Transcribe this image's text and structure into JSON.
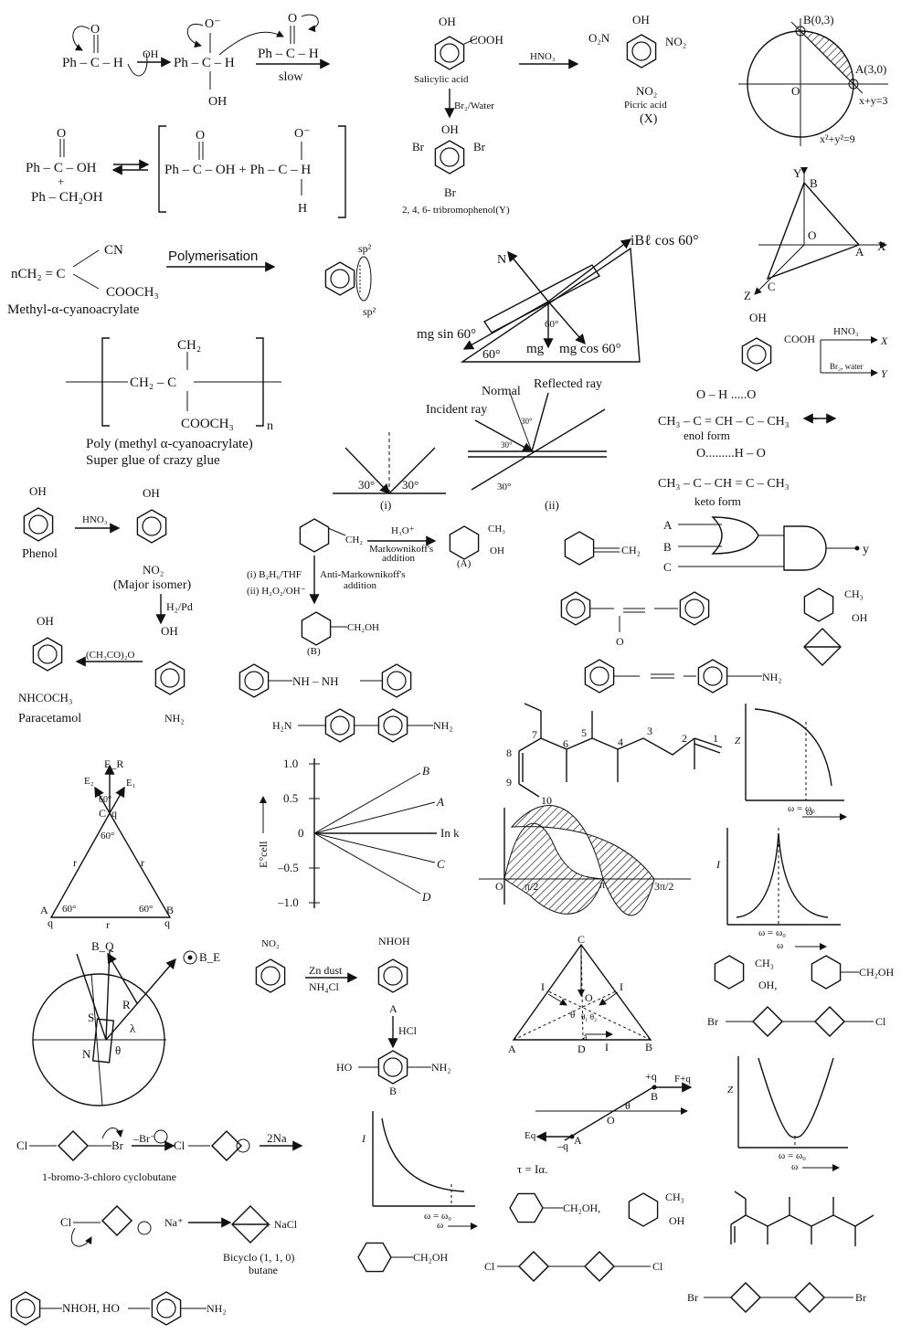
{
  "cannizzaro": {
    "r1": "Ph – C – H",
    "oh": "OH",
    "r2": "Ph – C – H",
    "r2oh": "OH",
    "o": "O",
    "ominus": "O⁻",
    "r3": "Ph – C – H",
    "slow": "slow",
    "p1": "Ph – C – OH",
    "plus": "+",
    "p2": "Ph – CH₂OH",
    "b1": "Ph – C – OH + Ph – C – H",
    "h": "H"
  },
  "salicylic": {
    "oh": "OH",
    "cooh": "COOH",
    "name": "Salicylic acid",
    "hno3": "HNO₃",
    "br2": "Br₂/Water",
    "o2n": "O₂N",
    "no2a": "NO₂",
    "no2b": "NO₂",
    "picric": "Picric acid",
    "x": "(X)",
    "br_l": "Br",
    "br_r": "Br",
    "br_b": "Br",
    "tribromo": "2, 4, 6- tribromophenol(Y)"
  },
  "circle": {
    "b": "B(0,3)",
    "a": "A(3,0)",
    "o": "O",
    "line": "x+y=3",
    "eq": "x²+y²=9"
  },
  "axes3d": {
    "y": "Y",
    "b": "B",
    "o": "O",
    "a": "A",
    "x": "X",
    "z": "Z",
    "c": "C"
  },
  "polymer": {
    "monomer": "nCH₂ = C",
    "cn": "CN",
    "cooch3": "COOCH₃",
    "name": "Methyl-α-cyanoacrylate",
    "arrow": "Polymerisation",
    "ch2": "CH₂",
    "chain": "CH₂ – C",
    "cooch3b": "COOCH₃",
    "n": "n",
    "poly": "Poly (methyl α-cyanoacrylate)",
    "glue": "Super glue of crazy glue"
  },
  "benzyne": {
    "sp2a": "sp²",
    "sp2b": "sp²"
  },
  "incline": {
    "top": "iBℓ cos 60°",
    "n": "N",
    "mgsin": "mg sin 60°",
    "mg": "mg",
    "mgcos": "mg cos 60°",
    "a1": "60°",
    "a2": "60°"
  },
  "mirror": {
    "normal": "Normal",
    "reflected": "Reflected ray",
    "incident": "Incident ray",
    "a30a": "30°",
    "a30b": "30°",
    "a30c": "30°",
    "a30d": "30°",
    "a30e": "30°",
    "i": "(i)",
    "ii": "(ii)"
  },
  "salicylic2": {
    "oh": "OH",
    "cooh": "COOH",
    "hno3": "HNO₃",
    "x": "X",
    "br": "Br₂, water",
    "y": "Y"
  },
  "tautomer": {
    "enol_top": "O – H .....O",
    "enol": "CH₃ – C = CH – C – CH₃",
    "enol_name": "enol form",
    "keto_top": "O.........H – O",
    "keto": "CH₃ – C – CH = C – CH₃",
    "keto_name": "keto form"
  },
  "paracetamol": {
    "oh1": "OH",
    "phenol": "Phenol",
    "hno3": "HNO₃",
    "oh2": "OH",
    "no2": "NO₂",
    "major": "(Major isomer)",
    "h2pd": "H₂/Pd",
    "oh3": "OH",
    "nh2": "NH₂",
    "anhydride": "(CH₃CO)₂O",
    "oh4": "OH",
    "nhcoch3": "NHCOCH₃",
    "name": "Paracetamol"
  },
  "hydration": {
    "ch2": "CH₂",
    "h3o": "H₃O⁺",
    "mark": "Markownikoff's",
    "add1": "addition",
    "ch3": "CH₃",
    "oh": "OH",
    "a": "(A)",
    "b2h6": "(i) B₂H₆/THF",
    "h2o2": "(ii) H₂O₂/OH⁻",
    "anti": "Anti-Markownikoff's",
    "add2": "addition",
    "ch2oh": "CH₂OH",
    "b": "(B)"
  },
  "misc": {
    "ch2": "CH₂",
    "gates": {
      "a": "A",
      "b": "B",
      "c": "C",
      "y": "y"
    },
    "ch3": "CH₃",
    "oh": "OH",
    "azoxy_o": "O",
    "nh2": "NH₂",
    "nhnh": "NH – NH",
    "h2n": "H₂N",
    "nh2b": "NH₂"
  },
  "chain": {
    "n1": "1",
    "n2": "2",
    "n3": "3",
    "n4": "4",
    "n5": "5",
    "n6": "6",
    "n7": "7",
    "n8": "8",
    "n9": "9",
    "n10": "10"
  },
  "graphZ": {
    "z": "Z",
    "w0": "ω = ω₀",
    "w": "ω"
  },
  "triangle": {
    "er": "E_R",
    "e2": "E₂",
    "e1": "E₁",
    "a60a": "60°",
    "a60b": "60°",
    "q": "q",
    "c": "C",
    "r1": "r",
    "r2": "r",
    "r3": "r",
    "a": "A",
    "a60c": "60°",
    "a60d": "60°",
    "bq": "B",
    "qa": "q",
    "qb": "q"
  },
  "ecell": {
    "y1": "1.0",
    "y2": "0.5",
    "y3": "0",
    "y4": "–0.5",
    "y5": "–1.0",
    "lb": "B",
    "la": "A",
    "lc": "C",
    "ld": "D",
    "lnk": "In k",
    "ylabel": "E°cell"
  },
  "sine": {
    "o": "O",
    "p2": "π/2",
    "p": "π",
    "p32": "3π/2"
  },
  "graphI": {
    "i": "I",
    "w0": "ω = ω₀",
    "w": "ω"
  },
  "dip": {
    "bq": "B_Q",
    "be": "B_E",
    "r": "R",
    "s": "S",
    "n": "N",
    "lambda": "λ",
    "theta": "θ"
  },
  "nitro": {
    "no2": "NO₂",
    "zn": "Zn dust",
    "nh4cl": "NH₄Cl",
    "nhoh": "NHOH",
    "a": "A",
    "hcl": "HCl",
    "ho": "HO",
    "nh2": "NH₂",
    "b": "B"
  },
  "centroid": {
    "c": "C",
    "i1": "I",
    "i2": "I",
    "o": "O",
    "t1": "θ",
    "t2": "θ₁ θ₂",
    "a": "A",
    "d": "D",
    "i3": "I",
    "b": "B",
    "alpha": "a"
  },
  "alcohols": {
    "ch3": "CH₃",
    "oh": "OH,",
    "ch2oh": "CH₂OH"
  },
  "cyclobutanes": {
    "br": "Br",
    "cl": "Cl"
  },
  "wurtz": {
    "cl": "Cl",
    "br": "Br",
    "mbr": "–Br⁻",
    "cl2": "Cl",
    "na": "2Na",
    "name": "1-bromo-3-chloro cyclobutane"
  },
  "graphI2": {
    "i": "I",
    "w0": "ω = ω₀",
    "w": "ω"
  },
  "dipole": {
    "q1": "+q",
    "f": "F+q",
    "b": "B",
    "o": "O",
    "theta": "θ",
    "eq": "Eq",
    "mq": "–q",
    "a": "A",
    "tau": "τ = Iα."
  },
  "graphZ2": {
    "z": "Z",
    "w0": "ω = ω₀",
    "w": "ω"
  },
  "bicyclo": {
    "cl": "Cl",
    "na": "Na⁺",
    "nacl": "+ NaCl",
    "name1": "Bicyclo (1, 1, 0)",
    "name2": "butane"
  },
  "bottom": {
    "ch2oh1": "CH₂OH",
    "ch2oh2": "CH₂OH,",
    "ch3": "CH₃",
    "oh": "OH",
    "cl1": "Cl",
    "cl2": "Cl",
    "br1": "Br",
    "br2": "Br",
    "nhoh": "NHOH, HO",
    "nh2": "NH₂"
  }
}
